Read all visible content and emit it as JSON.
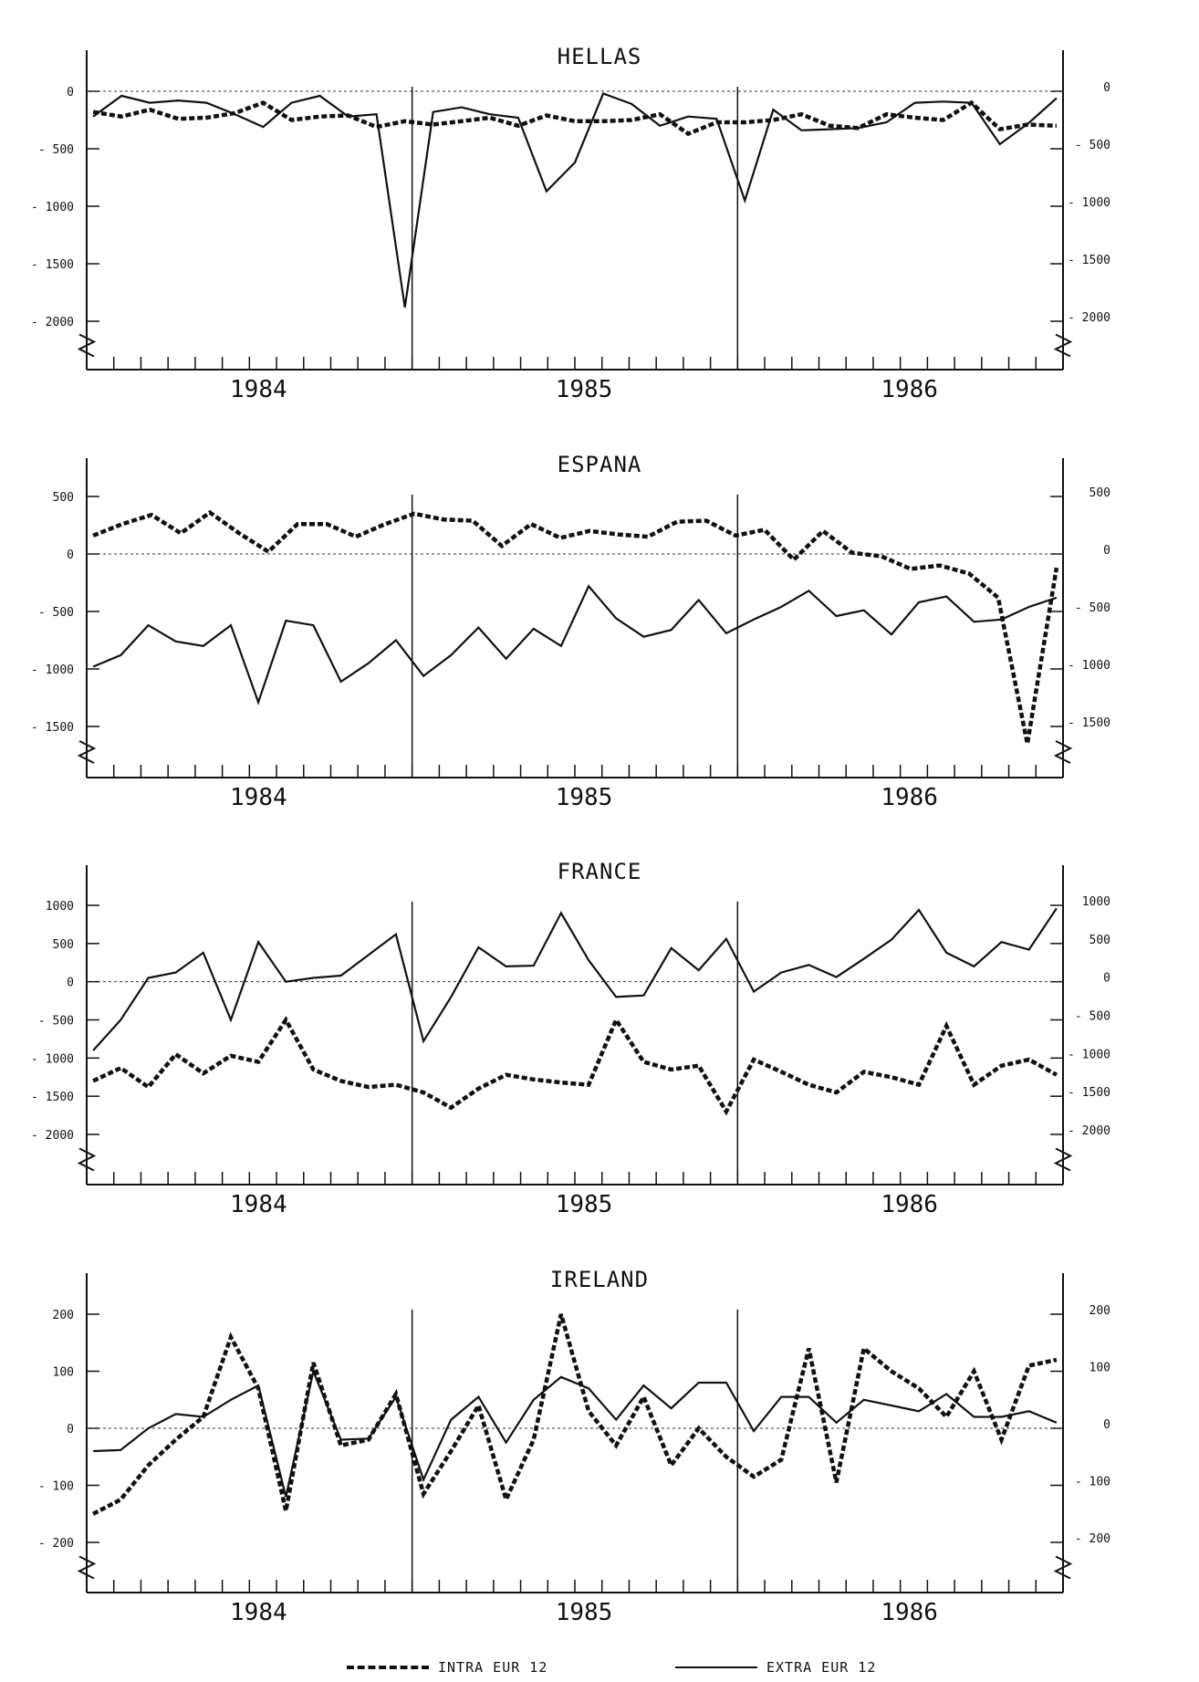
{
  "chart_data": [
    {
      "type": "line",
      "title": "HELLAS",
      "x_labels": [
        "1984",
        "1985",
        "1986"
      ],
      "ylim": [
        -2000,
        0
      ],
      "y_ticks": [
        0,
        -500,
        -1000,
        -1500,
        -2000
      ],
      "y_tick_labels": [
        "0",
        "- 500",
        "- 1000",
        "- 1500",
        "- 2000"
      ],
      "series": [
        {
          "name": "INTRA EUR 12",
          "values": [
            -180,
            -220,
            -160,
            -240,
            -230,
            -190,
            -100,
            -250,
            -220,
            -210,
            -310,
            -260,
            -290,
            -260,
            -230,
            -300,
            -210,
            -260,
            -260,
            -250,
            -200,
            -370,
            -270,
            -270,
            -250,
            -200,
            -300,
            -320,
            -200,
            -230,
            -250,
            -100,
            -330,
            -290,
            -300
          ]
        },
        {
          "name": "EXTRA EUR 12",
          "values": [
            -220,
            -40,
            -100,
            -80,
            -100,
            -200,
            -310,
            -100,
            -40,
            -220,
            -200,
            -1880,
            -180,
            -140,
            -200,
            -230,
            -870,
            -620,
            -20,
            -110,
            -300,
            -220,
            -240,
            -950,
            -160,
            -340,
            -330,
            -320,
            -270,
            -100,
            -90,
            -100,
            -460,
            -280,
            -60
          ]
        }
      ]
    },
    {
      "type": "line",
      "title": "ESPANA",
      "x_labels": [
        "1984",
        "1985",
        "1986"
      ],
      "ylim": [
        -1500,
        500
      ],
      "y_ticks": [
        500,
        0,
        -500,
        -1000,
        -1500
      ],
      "y_tick_labels": [
        "500",
        "0",
        "- 500",
        "- 1000",
        "- 1500"
      ],
      "series": [
        {
          "name": "INTRA EUR 12",
          "values": [
            160,
            260,
            340,
            180,
            360,
            180,
            20,
            260,
            260,
            150,
            260,
            350,
            300,
            290,
            70,
            260,
            140,
            200,
            170,
            150,
            280,
            290,
            160,
            210,
            -50,
            200,
            10,
            -20,
            -130,
            -100,
            -170,
            -380,
            -1650,
            -120
          ]
        },
        {
          "name": "EXTRA EUR 12",
          "values": [
            -980,
            -880,
            -620,
            -760,
            -800,
            -620,
            -1290,
            -580,
            -620,
            -1110,
            -950,
            -750,
            -1060,
            -880,
            -640,
            -910,
            -650,
            -800,
            -280,
            -560,
            -720,
            -660,
            -400,
            -690,
            -570,
            -460,
            -320,
            -540,
            -490,
            -700,
            -420,
            -370,
            -590,
            -570,
            -460,
            -380
          ]
        }
      ]
    },
    {
      "type": "line",
      "title": "FRANCE",
      "x_labels": [
        "1984",
        "1985",
        "1986"
      ],
      "ylim": [
        -2000,
        1000
      ],
      "y_ticks": [
        1000,
        500,
        0,
        -500,
        -1000,
        -1500,
        -2000
      ],
      "y_tick_labels": [
        "1000",
        "500",
        "0",
        "- 500",
        "- 1000",
        "- 1500",
        "- 2000"
      ],
      "series": [
        {
          "name": "INTRA EUR 12",
          "values": [
            -1300,
            -1130,
            -1380,
            -950,
            -1200,
            -970,
            -1050,
            -500,
            -1150,
            -1300,
            -1380,
            -1350,
            -1450,
            -1650,
            -1400,
            -1220,
            -1280,
            -1320,
            -1350,
            -500,
            -1050,
            -1150,
            -1100,
            -1700,
            -1020,
            -1180,
            -1350,
            -1450,
            -1180,
            -1250,
            -1350,
            -580,
            -1350,
            -1100,
            -1020,
            -1220
          ]
        },
        {
          "name": "EXTRA EUR 12",
          "values": [
            -900,
            -500,
            50,
            120,
            380,
            -500,
            520,
            0,
            50,
            80,
            350,
            620,
            -780,
            -200,
            450,
            200,
            210,
            900,
            280,
            -200,
            -180,
            440,
            150,
            560,
            -130,
            120,
            220,
            60,
            300,
            550,
            940,
            380,
            200,
            520,
            420,
            960
          ]
        }
      ]
    },
    {
      "type": "line",
      "title": "IRELAND",
      "x_labels": [
        "1984",
        "1985",
        "1986"
      ],
      "ylim": [
        -200,
        200
      ],
      "y_ticks": [
        200,
        100,
        0,
        -100,
        -200
      ],
      "y_tick_labels": [
        "200",
        "100",
        "0",
        "- 100",
        "- 200"
      ],
      "series": [
        {
          "name": "INTRA EUR 12",
          "values": [
            -150,
            -125,
            -65,
            -20,
            20,
            160,
            70,
            -145,
            115,
            -30,
            -20,
            60,
            -115,
            -40,
            40,
            -125,
            -20,
            200,
            30,
            -30,
            55,
            -65,
            0,
            -50,
            -85,
            -55,
            140,
            -95,
            140,
            100,
            70,
            20,
            100,
            -20,
            110,
            120
          ]
        },
        {
          "name": "EXTRA EUR 12",
          "values": [
            -40,
            -38,
            0,
            25,
            20,
            50,
            75,
            -120,
            100,
            -20,
            -18,
            55,
            -90,
            15,
            55,
            -25,
            50,
            90,
            70,
            15,
            75,
            35,
            80,
            80,
            -5,
            55,
            55,
            10,
            50,
            40,
            30,
            60,
            20,
            20,
            30,
            10
          ]
        }
      ]
    }
  ],
  "legend": {
    "intra_label": "INTRA EUR 12",
    "extra_label": "EXTRA EUR 12"
  }
}
